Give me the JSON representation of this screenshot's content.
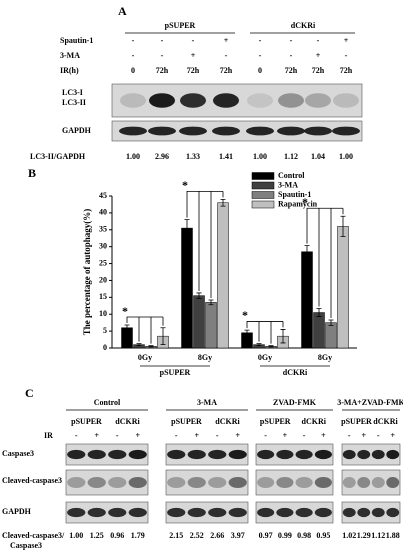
{
  "panel_a": {
    "label": "A",
    "groups": [
      "pSUPER",
      "dCKRi"
    ],
    "rows": [
      {
        "name": "Spautin-1",
        "cells": [
          "-",
          "-",
          "-",
          "+",
          "-",
          "-",
          "-",
          "+"
        ]
      },
      {
        "name": "3-MA",
        "cells": [
          "-",
          "-",
          "+",
          "-",
          "-",
          "-",
          "+",
          "-"
        ]
      },
      {
        "name": "IR(h)",
        "cells": [
          "0",
          "72h",
          "72h",
          "72h",
          "0",
          "72h",
          "72h",
          "72h"
        ]
      }
    ],
    "blot_labels": [
      "LC3-I",
      "LC3-II",
      "GAPDH"
    ],
    "ratio_label": "LC3-II/GAPDH",
    "ratios": [
      "1.00",
      "2.96",
      "1.33",
      "1.41",
      "1.00",
      "1.12",
      "1.04",
      "1.00"
    ]
  },
  "chart_data": {
    "type": "bar",
    "panel_label": "B",
    "y_label": "The percentage of autophagy(%)",
    "categories": [
      "0Gy",
      "8Gy",
      "0Gy",
      "8Gy"
    ],
    "group_labels": [
      "pSUPER",
      "dCKRi"
    ],
    "ylim": [
      0,
      45
    ],
    "yticks": [
      0,
      5,
      10,
      15,
      20,
      25,
      30,
      35,
      40,
      45
    ],
    "series": [
      {
        "name": "Control",
        "color": "#000000",
        "values": [
          6,
          35.5,
          4.5,
          28.5
        ],
        "errors": [
          0.8,
          2.5,
          0.8,
          1.8
        ]
      },
      {
        "name": "3-MA",
        "color": "#404040",
        "values": [
          1,
          15.5,
          1,
          10.5
        ],
        "errors": [
          0.3,
          0.8,
          0.3,
          1.2
        ]
      },
      {
        "name": "Spautin-1",
        "color": "#7f7f7f",
        "values": [
          0.5,
          13.5,
          0.5,
          7.5
        ],
        "errors": [
          0.2,
          0.7,
          0.2,
          0.8
        ]
      },
      {
        "name": "Rapamycin",
        "color": "#bfbfbf",
        "values": [
          3.5,
          43,
          3.5,
          36
        ],
        "errors": [
          2.5,
          1,
          2,
          3
        ]
      }
    ],
    "annotations": [
      "*",
      "*",
      "*",
      "*"
    ],
    "legend": "upper-right"
  },
  "panel_c": {
    "label": "C",
    "groups": [
      "Control",
      "3-MA",
      "ZVAD-FMK",
      "3-MA+ZVAD-FMK"
    ],
    "subgroups": [
      "pSUPER",
      "dCKRi"
    ],
    "ir_label": "IR",
    "ir_cells": [
      "-",
      "+",
      "-",
      "+"
    ],
    "blot_labels": [
      "Caspase3",
      "Cleaved-caspase3",
      "GAPDH"
    ],
    "ratio_label": [
      "Cleaved-caspase3/",
      "Caspase3"
    ],
    "ratios": [
      "1.00",
      "1.25",
      "0.96",
      "1.79",
      "2.15",
      "2.52",
      "2.66",
      "3.97",
      "0.97",
      "0.99",
      "0.98",
      "0.95",
      "1.02",
      "1.29",
      "1.12",
      "1.88"
    ]
  }
}
